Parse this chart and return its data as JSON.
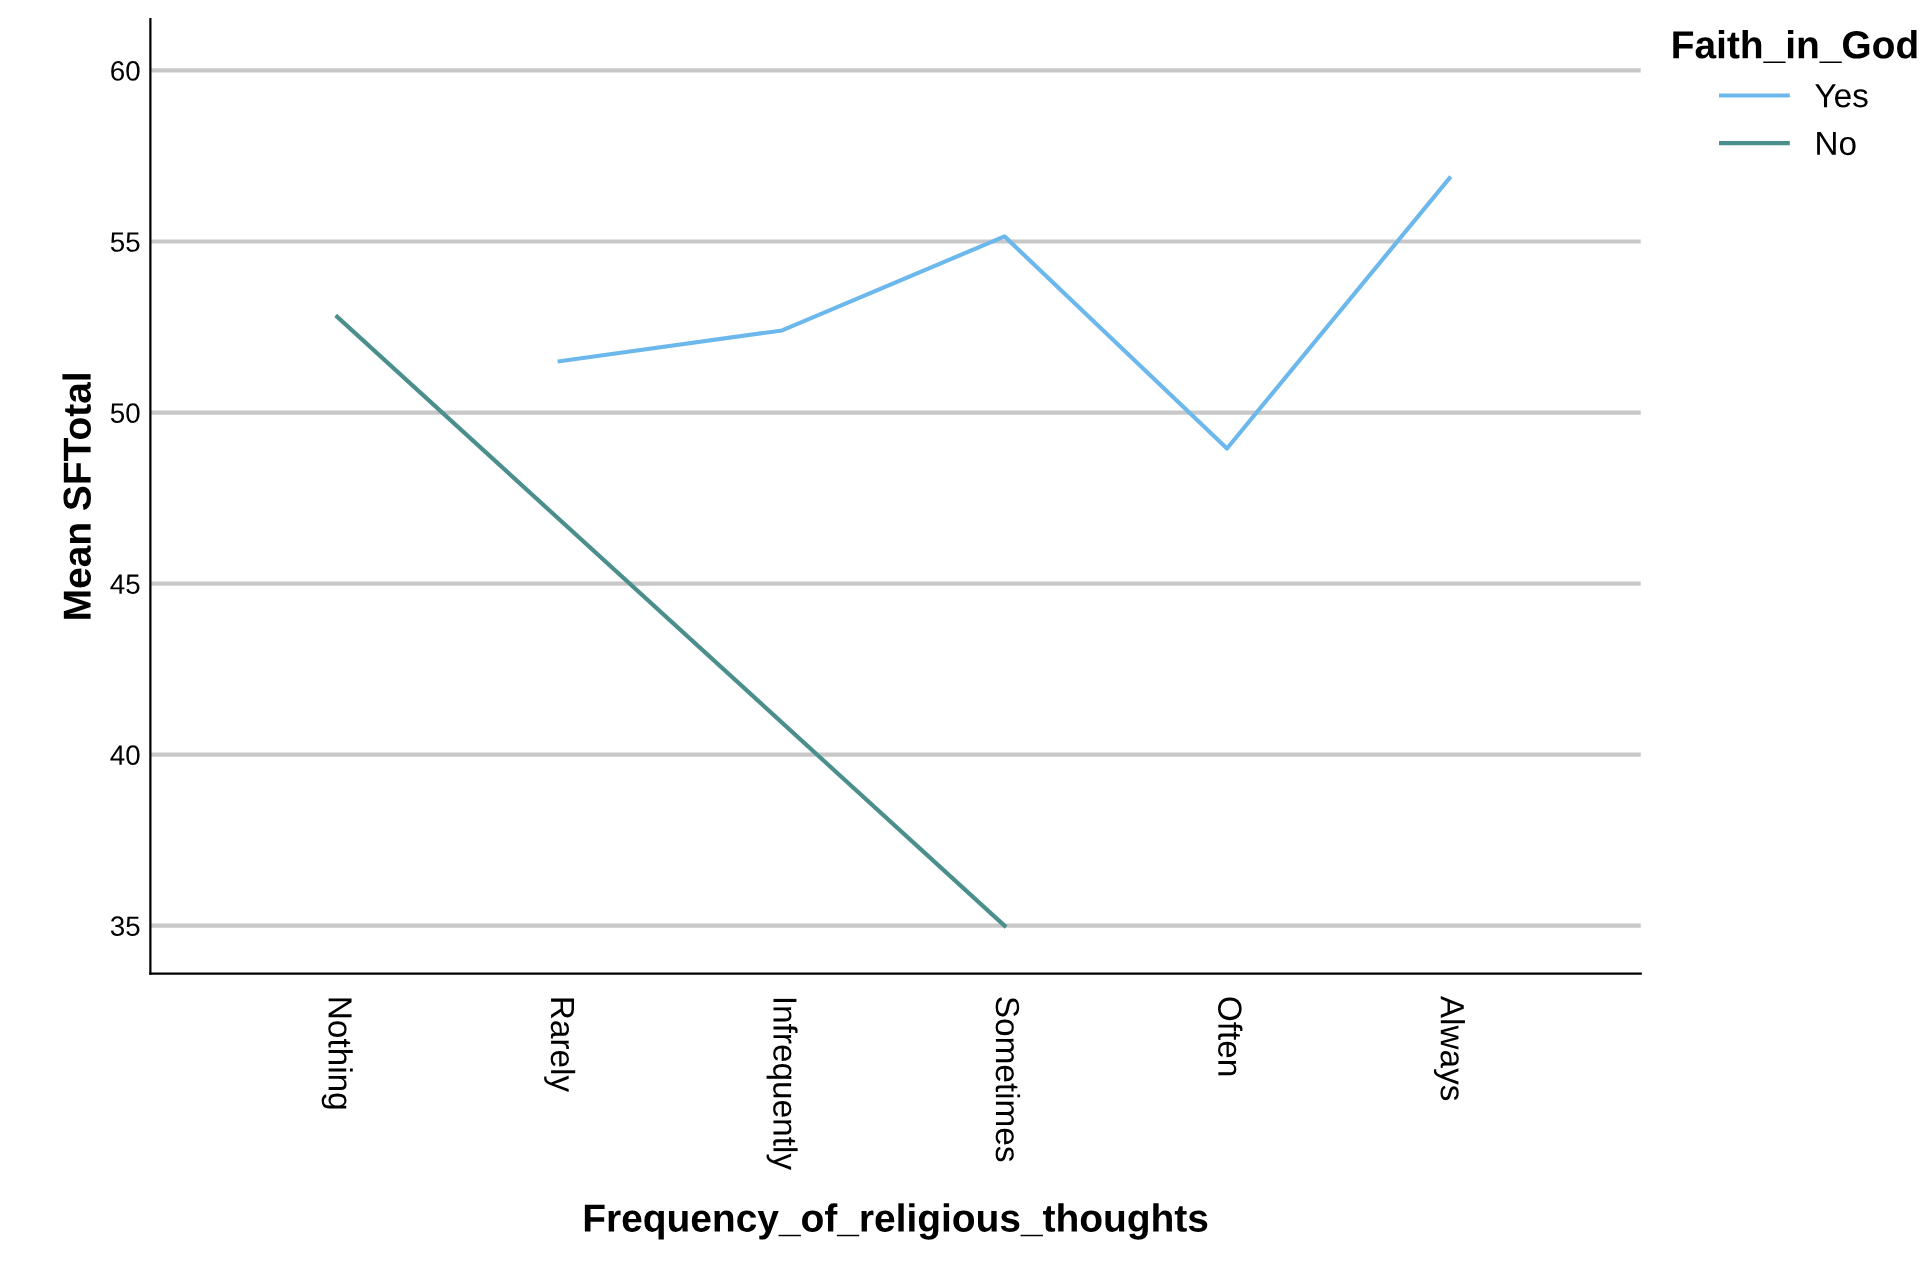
{
  "chart_data": {
    "type": "line",
    "xlabel": "Frequency_of_religious_thoughts",
    "ylabel": "Mean SFTotal",
    "legend_title": "Faith_in_God",
    "categories": [
      "Nothing",
      "Rarely",
      "Infrequently",
      "Sometimes",
      "Often",
      "Always"
    ],
    "series": [
      {
        "name": "Yes",
        "color": "#6cb8ec",
        "values": [
          null,
          51.5,
          52.4,
          55.15,
          48.95,
          56.85
        ]
      },
      {
        "name": "No",
        "color": "#4a8f8c",
        "values": [
          52.8,
          null,
          null,
          35.0,
          null,
          null
        ]
      }
    ],
    "ylim": [
      33.6,
      61.5
    ],
    "yticks": [
      35,
      40,
      45,
      50,
      55,
      60
    ],
    "grid": "y",
    "legend": "top right",
    "marker": "none",
    "line_style": "solid"
  }
}
